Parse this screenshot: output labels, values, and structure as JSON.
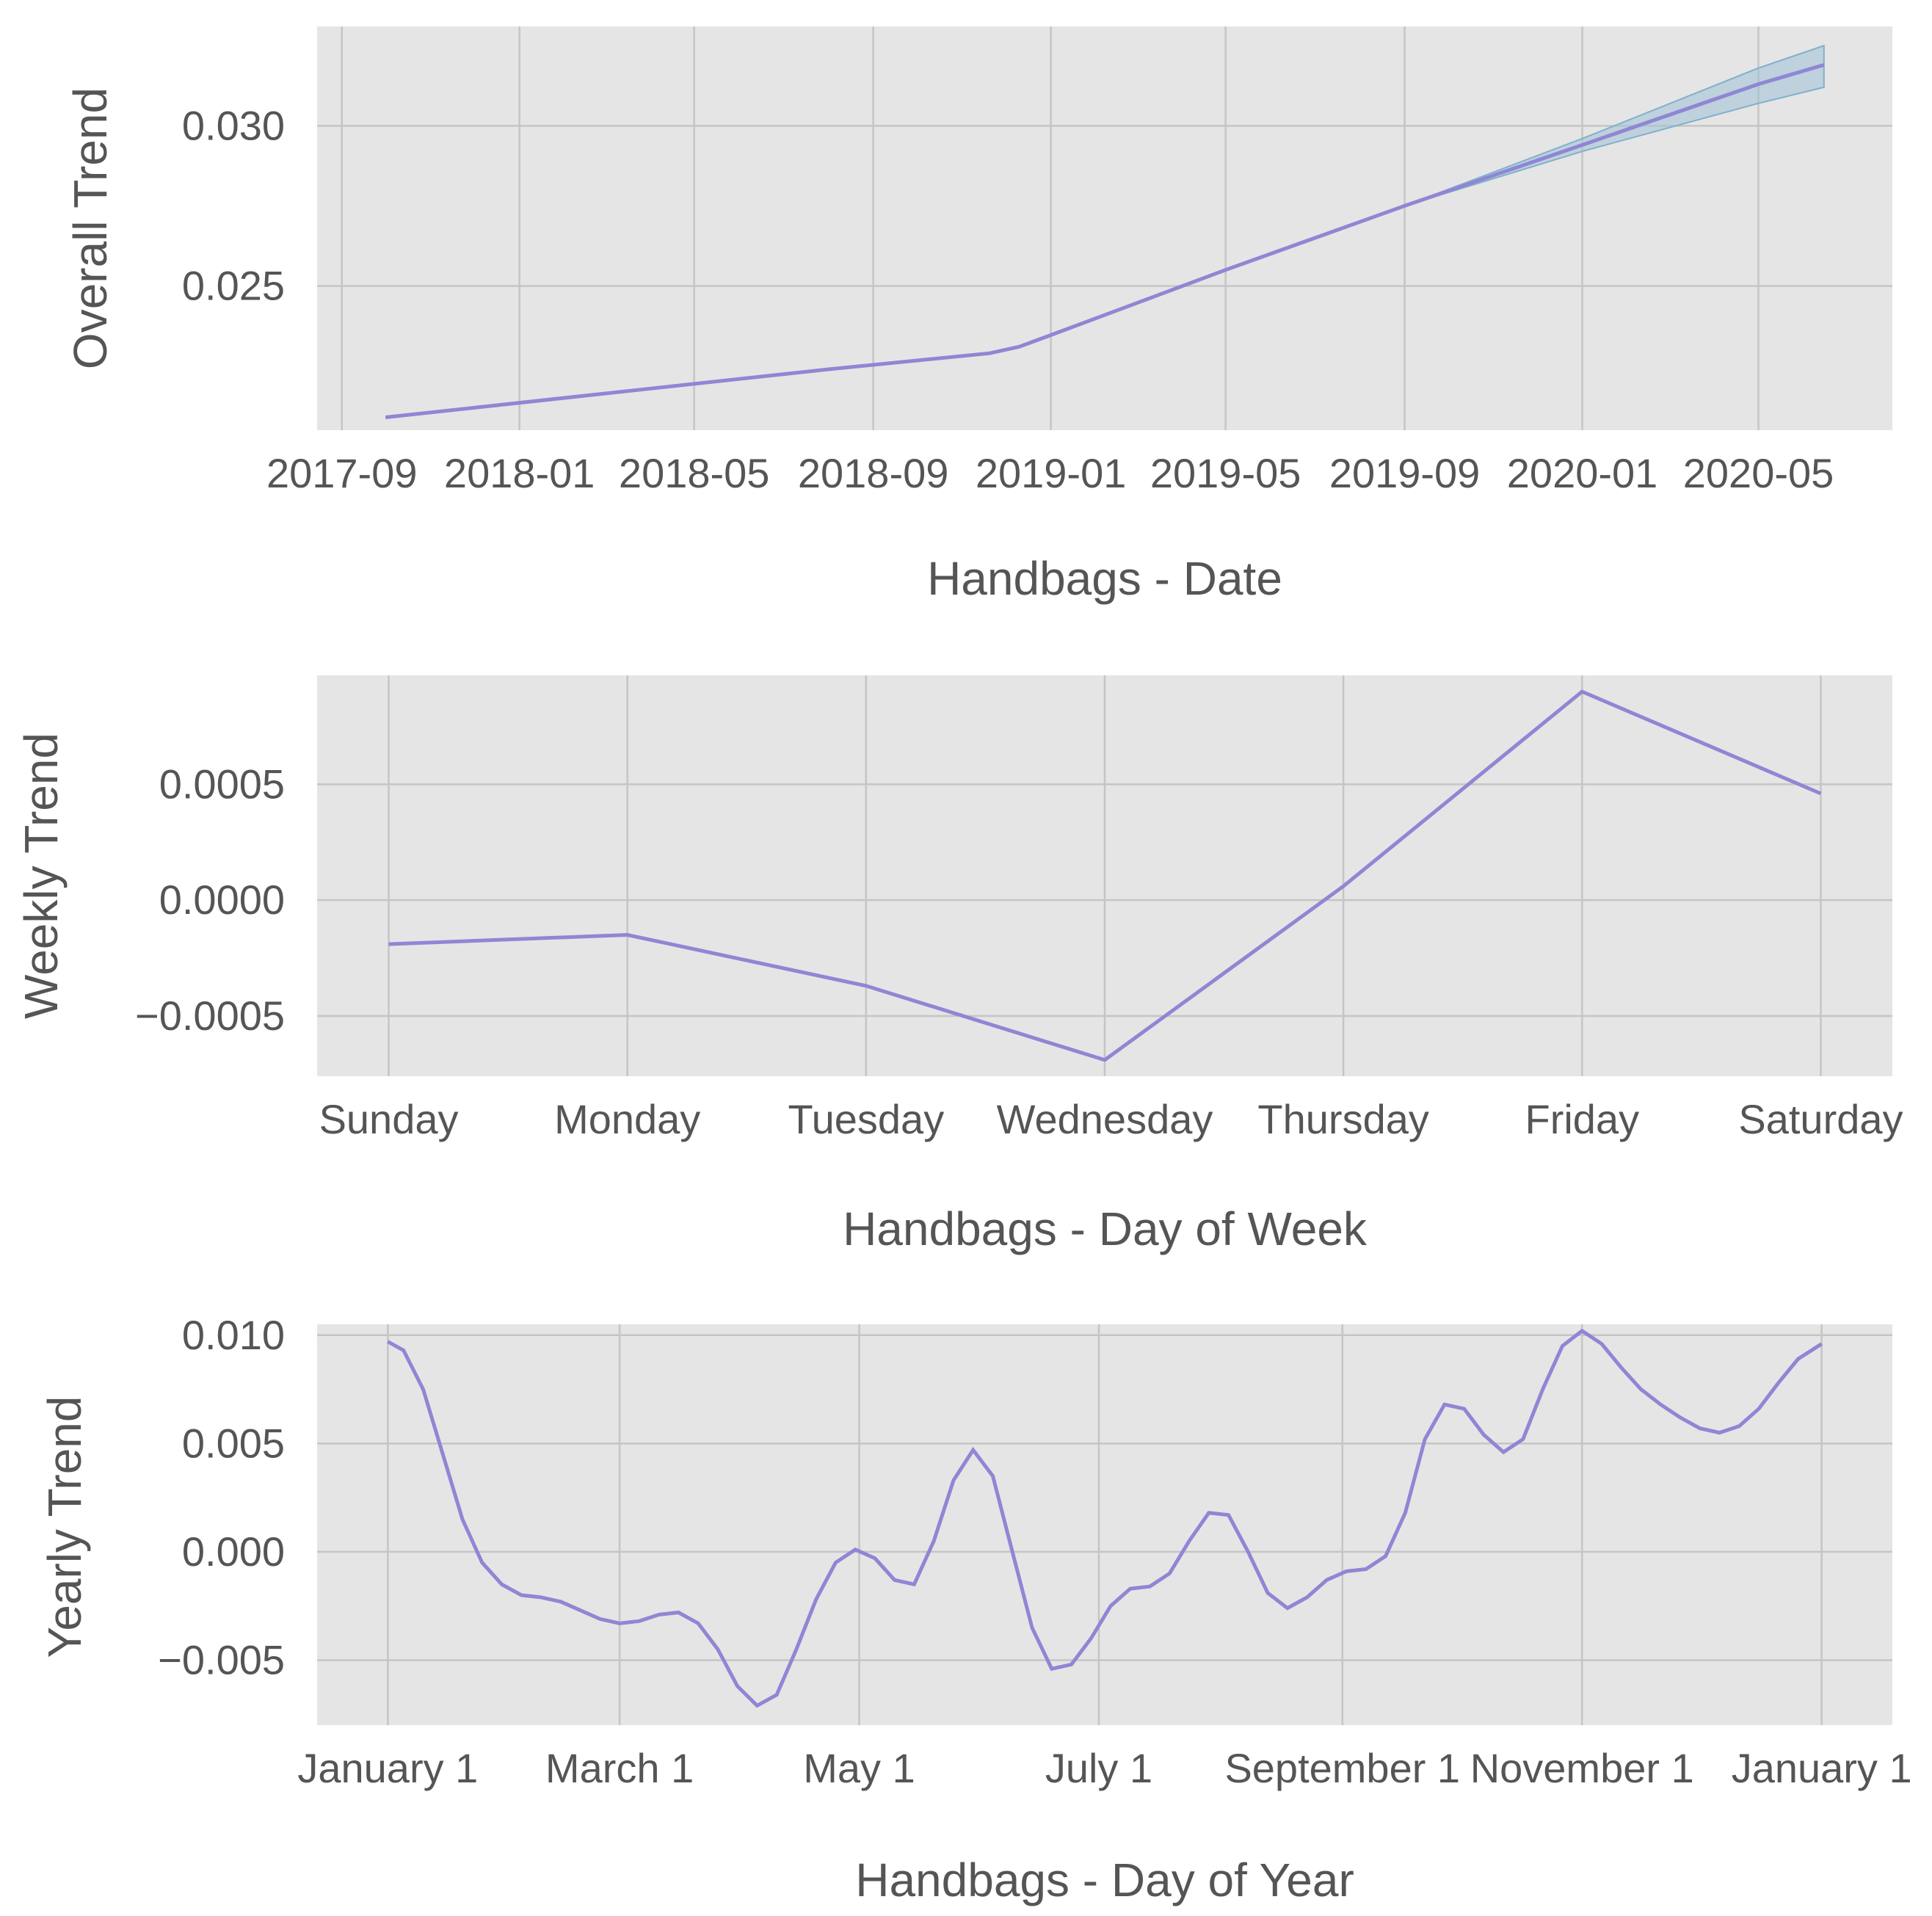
{
  "colors": {
    "panel_bg": "#e5e5e5",
    "grid": "#c5c5c5",
    "line": "#8f86d4",
    "band": "#9ec1d6",
    "text": "#555555"
  },
  "chart_data": [
    {
      "type": "line",
      "xlabel": "Handbags - Date",
      "ylabel": "Overall Trend",
      "x_type": "date",
      "x_ticks": [
        "2017-09",
        "2018-01",
        "2018-05",
        "2018-09",
        "2019-01",
        "2019-05",
        "2019-09",
        "2020-01",
        "2020-05"
      ],
      "xlim": [
        "2017-08-15",
        "2020-08-01"
      ],
      "ylim": [
        0.0205,
        0.0331
      ],
      "y_ticks": [
        0.025,
        0.03
      ],
      "y_tick_labels": [
        "0.025",
        "0.030"
      ],
      "grid": true,
      "series": [
        {
          "x": [
            "2017-10-01",
            "2017-12-01",
            "2018-04-01",
            "2018-08-01",
            "2018-11-20",
            "2018-12-10",
            "2018-12-28",
            "2019-05-01",
            "2019-09-01",
            "2020-01-01",
            "2020-05-01",
            "2020-06-15"
          ],
          "y": [
            0.0209,
            0.0212,
            0.0218,
            0.0224,
            0.0229,
            0.0231,
            0.0234,
            0.0255,
            0.0275,
            0.0294,
            0.0313,
            0.0319
          ],
          "band_lower": [
            0.0209,
            0.0212,
            0.0218,
            0.0224,
            0.0229,
            0.0231,
            0.0234,
            0.0255,
            0.0275,
            0.0292,
            0.0307,
            0.0312
          ],
          "band_upper": [
            0.0209,
            0.0212,
            0.0218,
            0.0224,
            0.0229,
            0.0231,
            0.0234,
            0.0255,
            0.0275,
            0.0296,
            0.0318,
            0.0325
          ]
        }
      ]
    },
    {
      "type": "line",
      "xlabel": "Handbags - Day of Week",
      "ylabel": "Weekly Trend",
      "categories": [
        "Sunday",
        "Monday",
        "Tuesday",
        "Wednesday",
        "Thursday",
        "Friday",
        "Saturday"
      ],
      "ylim": [
        -0.00076,
        0.00097
      ],
      "y_ticks": [
        -0.0005,
        0.0,
        0.0005
      ],
      "y_tick_labels": [
        "−0.0005",
        "0.0000",
        "0.0005"
      ],
      "grid": true,
      "series": [
        {
          "values": [
            -0.00019,
            -0.00015,
            -0.00037,
            -0.00069,
            6e-05,
            0.0009,
            0.00046
          ]
        }
      ]
    },
    {
      "type": "line",
      "xlabel": "Handbags - Day of Year",
      "ylabel": "Yearly Trend",
      "x_type": "day_of_year",
      "x_ticks": [
        1,
        60,
        121,
        182,
        244,
        305,
        366
      ],
      "x_tick_labels": [
        "January 1",
        "March 1",
        "May 1",
        "July 1",
        "September 1",
        "November 1",
        "January 1"
      ],
      "xlim": [
        -17,
        384
      ],
      "ylim": [
        -0.008,
        0.0105
      ],
      "y_ticks": [
        -0.005,
        0.0,
        0.005,
        0.01
      ],
      "y_tick_labels": [
        "−0.005",
        "0.000",
        "0.005",
        "0.010"
      ],
      "grid": true,
      "series": [
        {
          "x": [
            1,
            5,
            10,
            15,
            20,
            25,
            30,
            35,
            40,
            45,
            50,
            55,
            60,
            65,
            70,
            75,
            80,
            85,
            90,
            95,
            100,
            105,
            110,
            115,
            120,
            125,
            130,
            135,
            140,
            145,
            150,
            155,
            160,
            165,
            170,
            175,
            180,
            185,
            190,
            195,
            200,
            205,
            210,
            215,
            220,
            225,
            230,
            235,
            240,
            245,
            250,
            255,
            260,
            265,
            270,
            275,
            280,
            285,
            290,
            295,
            300,
            305,
            310,
            315,
            320,
            325,
            330,
            335,
            340,
            345,
            350,
            355,
            360,
            366
          ],
          "y": [
            0.0097,
            0.0093,
            0.0075,
            0.0045,
            0.0015,
            -0.0005,
            -0.0015,
            -0.002,
            -0.0021,
            -0.0023,
            -0.0027,
            -0.0031,
            -0.0033,
            -0.0032,
            -0.0029,
            -0.0028,
            -0.0033,
            -0.0045,
            -0.0062,
            -0.0071,
            -0.0066,
            -0.0045,
            -0.0022,
            -0.0005,
            0.0001,
            -0.0003,
            -0.0013,
            -0.0015,
            0.0005,
            0.0033,
            0.0047,
            0.0035,
            0.0,
            -0.0035,
            -0.0054,
            -0.0052,
            -0.004,
            -0.0025,
            -0.0017,
            -0.0016,
            -0.001,
            0.0005,
            0.0018,
            0.0017,
            0.0,
            -0.0019,
            -0.0026,
            -0.0021,
            -0.0013,
            -0.0009,
            -0.0008,
            -0.0002,
            0.0018,
            0.0052,
            0.0068,
            0.0066,
            0.0054,
            0.0046,
            0.0052,
            0.0075,
            0.0095,
            0.0102,
            0.0096,
            0.0085,
            0.0075,
            0.0068,
            0.0062,
            0.0057,
            0.0055,
            0.0058,
            0.0066,
            0.0078,
            0.0089,
            0.0096
          ]
        }
      ]
    }
  ]
}
